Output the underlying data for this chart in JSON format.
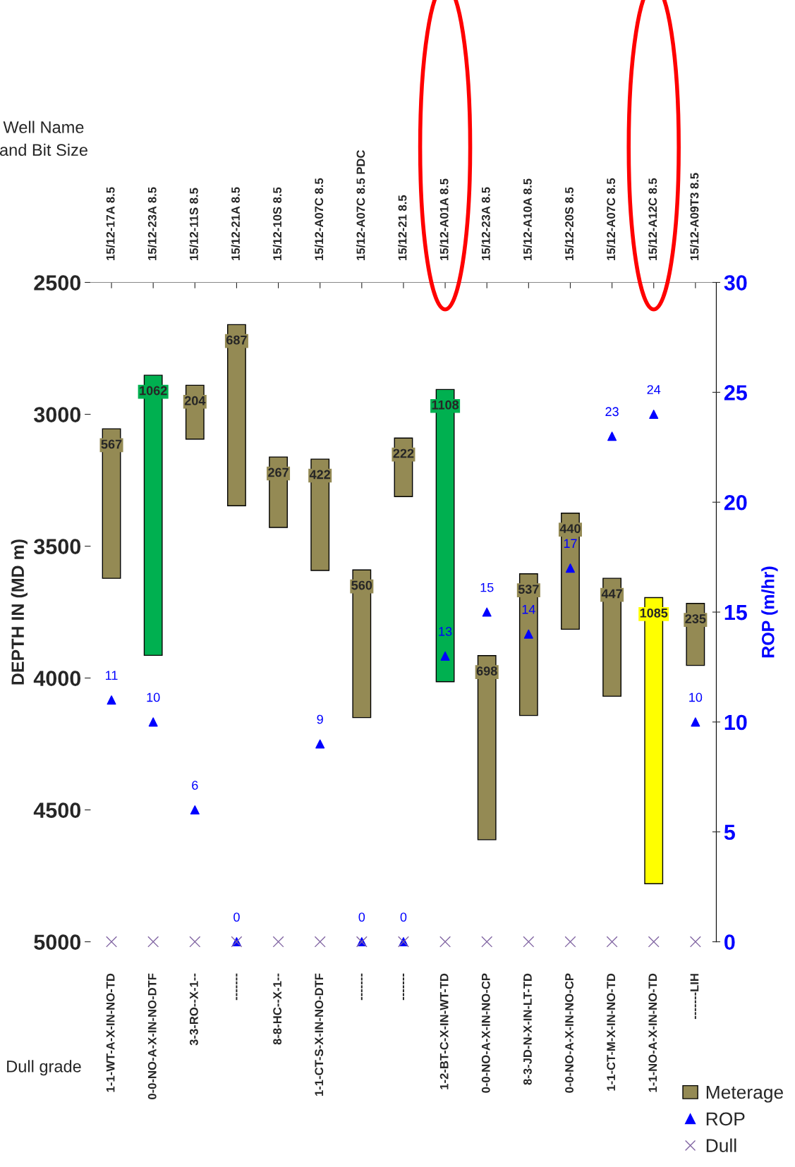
{
  "chart_data": {
    "type": "bar",
    "categories": [
      "15/12-17A 8.5",
      "15/12-23A 8.5",
      "15/12-11S 8.5",
      "15/12-21A 8.5",
      "15/12-10S 8.5",
      "15/12-A07C 8.5",
      "15/12-A07C 8.5 PDC",
      "15/12-21 8.5",
      "15/12-A01A 8.5",
      "15/12-23A 8.5",
      "15/12-A10A 8.5",
      "15/12-20S 8.5",
      "15/12-A07C 8.5",
      "15/12-A12C 8.5",
      "15/12-A09T3 8.5"
    ],
    "ylabel": "DEPTH IN (MD m)",
    "y2label": "ROP (m/hr)",
    "ylim": [
      5000,
      2500
    ],
    "yticks": [
      2500,
      3000,
      3500,
      4000,
      4500,
      5000
    ],
    "y2lim": [
      0,
      30
    ],
    "y2ticks": [
      0,
      5,
      10,
      15,
      20,
      25,
      30
    ],
    "data_labels": true,
    "legend": "bottom right",
    "grid": false,
    "annotations": [
      "Well Name\nand Bit Size",
      "Dull grade"
    ],
    "series": [
      {
        "name": "Meterage",
        "color": "#948a54",
        "colors": [
          "#948a54",
          "#00b050",
          "#948a54",
          "#948a54",
          "#948a54",
          "#948a54",
          "#948a54",
          "#948a54",
          "#00b050",
          "#948a54",
          "#948a54",
          "#948a54",
          "#948a54",
          "#ffff00",
          "#948a54"
        ],
        "base": [
          3055,
          2852,
          2890,
          2660,
          3162,
          3170,
          3590,
          3090,
          2906,
          3915,
          3605,
          3375,
          3622,
          3695,
          3717
        ],
        "values": [
          567,
          1062,
          204,
          687,
          267,
          422,
          560,
          222,
          1108,
          698,
          537,
          440,
          447,
          1085,
          235
        ]
      },
      {
        "name": "ROP",
        "type": "scatter",
        "axis": "y2",
        "marker": "triangle",
        "color": "#0000ff",
        "values": [
          11,
          10,
          6,
          0,
          null,
          9,
          0,
          0,
          13,
          15,
          14,
          17,
          23,
          24,
          10
        ]
      },
      {
        "name": "Dull",
        "type": "scatter",
        "axis": "y2",
        "marker": "cross",
        "color": "#8064a2",
        "values": [
          0,
          0,
          0,
          0,
          0,
          0,
          0,
          0,
          0,
          0,
          0,
          0,
          0,
          0,
          0
        ],
        "value_labels": [
          "1-1-WT-A-X-IN-NO-TD",
          "0-0-NO-A-X-IN-NO-DTF",
          "3-3-RO--X-1--",
          "-------",
          "8-8-HC--X-1--",
          "1-1-CT-S-X-IN-NO-DTF",
          "-------",
          "-------",
          "1-2-BT-C-X-IN-WT-TD",
          "0-0-NO-A-X-IN-NO-CP",
          "8-3-JD-N-X-IN-LT-TD",
          "0-0-NO-A-X-IN-NO-CP",
          "1-1-CT-M-X-IN-NO-TD",
          "1-1-NO-A-X-IN-NO-TD",
          "-------LIH"
        ]
      }
    ]
  }
}
